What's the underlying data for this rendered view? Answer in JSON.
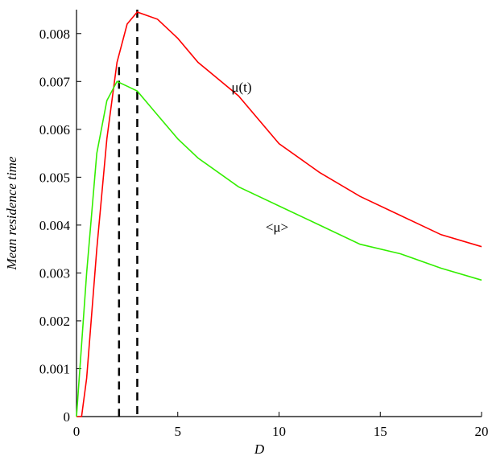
{
  "chart_data": {
    "type": "line",
    "x_label": "D",
    "y_label": "Mean residence time",
    "x": [
      0,
      0.25,
      0.5,
      1,
      1.5,
      2,
      2.5,
      3,
      4,
      5,
      6,
      8,
      10,
      12,
      14,
      16,
      18,
      20
    ],
    "series": [
      {
        "name": "μ(t)",
        "color": "#ff0000",
        "values": [
          0,
          0,
          0.0008,
          0.0035,
          0.0058,
          0.0074,
          0.0082,
          0.00845,
          0.0083,
          0.0079,
          0.0074,
          0.0067,
          0.0057,
          0.0051,
          0.0046,
          0.0042,
          0.0038,
          0.00355
        ]
      },
      {
        "name": "<μ>",
        "color": "#33ee00",
        "values": [
          0,
          0.0015,
          0.003,
          0.0055,
          0.0066,
          0.007,
          0.0069,
          0.0068,
          0.0063,
          0.0058,
          0.0054,
          0.0048,
          0.0044,
          0.004,
          0.0036,
          0.0034,
          0.0031,
          0.00285
        ]
      }
    ],
    "reference_lines": [
      {
        "x": 2.1,
        "top": 0.0073
      },
      {
        "x": 3,
        "top": 0.0085
      }
    ],
    "xlim": [
      0,
      20
    ],
    "ylim": [
      0,
      0.0085
    ],
    "xticks": [
      0,
      5,
      10,
      15,
      20
    ],
    "yticks": [
      0,
      0.001,
      0.002,
      0.003,
      0.004,
      0.005,
      0.006,
      0.007,
      0.008
    ]
  }
}
